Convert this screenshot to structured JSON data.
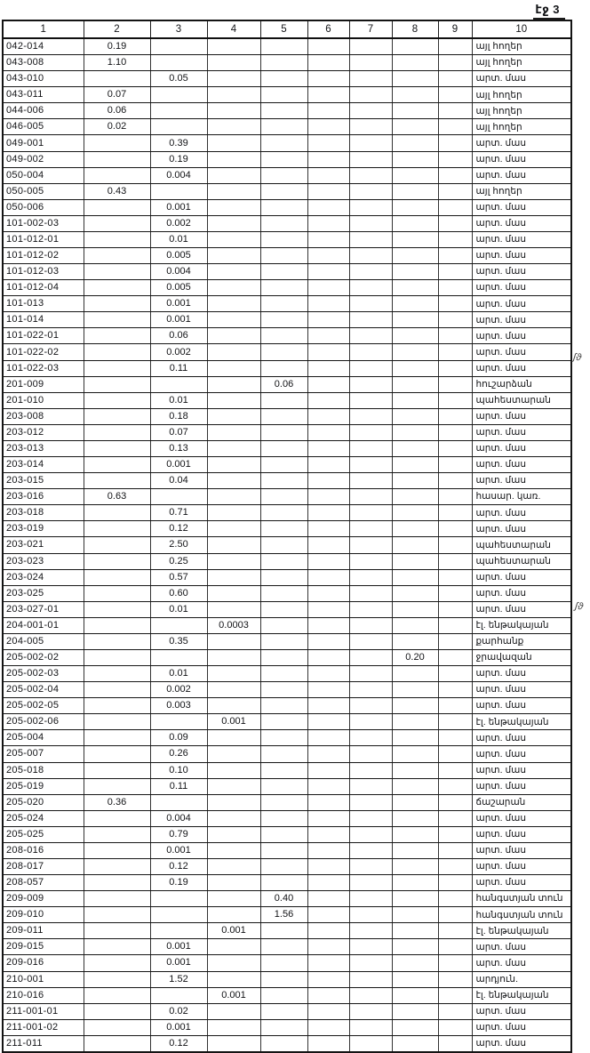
{
  "page": {
    "label": "էջ 3"
  },
  "table": {
    "headers": [
      "1",
      "2",
      "3",
      "4",
      "5",
      "6",
      "7",
      "8",
      "9",
      "10"
    ],
    "rows": [
      [
        "042-014",
        "0.19",
        "",
        "",
        "",
        "",
        "",
        "",
        "",
        "այլ հողեր"
      ],
      [
        "043-008",
        "1.10",
        "",
        "",
        "",
        "",
        "",
        "",
        "",
        "այլ հողեր"
      ],
      [
        "043-010",
        "",
        "0.05",
        "",
        "",
        "",
        "",
        "",
        "",
        "արտ. մաս"
      ],
      [
        "043-011",
        "0.07",
        "",
        "",
        "",
        "",
        "",
        "",
        "",
        "այլ հողեր"
      ],
      [
        "044-006",
        "0.06",
        "",
        "",
        "",
        "",
        "",
        "",
        "",
        "այլ հողեր"
      ],
      [
        "046-005",
        "0.02",
        "",
        "",
        "",
        "",
        "",
        "",
        "",
        "այլ հողեր"
      ],
      [
        "049-001",
        "",
        "0.39",
        "",
        "",
        "",
        "",
        "",
        "",
        "արտ. մաս"
      ],
      [
        "049-002",
        "",
        "0.19",
        "",
        "",
        "",
        "",
        "",
        "",
        "արտ. մաս"
      ],
      [
        "050-004",
        "",
        "0.004",
        "",
        "",
        "",
        "",
        "",
        "",
        "արտ. մաս"
      ],
      [
        "050-005",
        "0.43",
        "",
        "",
        "",
        "",
        "",
        "",
        "",
        "այլ հողեր"
      ],
      [
        "050-006",
        "",
        "0.001",
        "",
        "",
        "",
        "",
        "",
        "",
        "արտ. մաս"
      ],
      [
        "101-002-03",
        "",
        "0.002",
        "",
        "",
        "",
        "",
        "",
        "",
        "արտ. մաս"
      ],
      [
        "101-012-01",
        "",
        "0.01",
        "",
        "",
        "",
        "",
        "",
        "",
        "արտ. մաս"
      ],
      [
        "101-012-02",
        "",
        "0.005",
        "",
        "",
        "",
        "",
        "",
        "",
        "արտ. մաս"
      ],
      [
        "101-012-03",
        "",
        "0.004",
        "",
        "",
        "",
        "",
        "",
        "",
        "արտ. մաս"
      ],
      [
        "101-012-04",
        "",
        "0.005",
        "",
        "",
        "",
        "",
        "",
        "",
        "արտ. մաս"
      ],
      [
        "101-013",
        "",
        "0.001",
        "",
        "",
        "",
        "",
        "",
        "",
        "արտ. մաս"
      ],
      [
        "101-014",
        "",
        "0.001",
        "",
        "",
        "",
        "",
        "",
        "",
        "արտ. մաս"
      ],
      [
        "101-022-01",
        "",
        "0.06",
        "",
        "",
        "",
        "",
        "",
        "",
        "արտ. մաս"
      ],
      [
        "101-022-02",
        "",
        "0.002",
        "",
        "",
        "",
        "",
        "",
        "",
        "արտ. մաս"
      ],
      [
        "101-022-03",
        "",
        "0.11",
        "",
        "",
        "",
        "",
        "",
        "",
        "արտ. մաս"
      ],
      [
        "201-009",
        "",
        "",
        "",
        "0.06",
        "",
        "",
        "",
        "",
        "հուշարձան"
      ],
      [
        "201-010",
        "",
        "0.01",
        "",
        "",
        "",
        "",
        "",
        "",
        "պահեստարան"
      ],
      [
        "203-008",
        "",
        "0.18",
        "",
        "",
        "",
        "",
        "",
        "",
        "արտ. մաս"
      ],
      [
        "203-012",
        "",
        "0.07",
        "",
        "",
        "",
        "",
        "",
        "",
        "արտ. մաս"
      ],
      [
        "203-013",
        "",
        "0.13",
        "",
        "",
        "",
        "",
        "",
        "",
        "արտ. մաս"
      ],
      [
        "203-014",
        "",
        "0.001",
        "",
        "",
        "",
        "",
        "",
        "",
        "արտ. մաս"
      ],
      [
        "203-015",
        "",
        "0.04",
        "",
        "",
        "",
        "",
        "",
        "",
        "արտ. մաս"
      ],
      [
        "203-016",
        "0.63",
        "",
        "",
        "",
        "",
        "",
        "",
        "",
        "հասար. կառ."
      ],
      [
        "203-018",
        "",
        "0.71",
        "",
        "",
        "",
        "",
        "",
        "",
        "արտ. մաս"
      ],
      [
        "203-019",
        "",
        "0.12",
        "",
        "",
        "",
        "",
        "",
        "",
        "արտ. մաս"
      ],
      [
        "203-021",
        "",
        "2.50",
        "",
        "",
        "",
        "",
        "",
        "",
        "պահեստարան"
      ],
      [
        "203-023",
        "",
        "0.25",
        "",
        "",
        "",
        "",
        "",
        "",
        "պահեստարան"
      ],
      [
        "203-024",
        "",
        "0.57",
        "",
        "",
        "",
        "",
        "",
        "",
        "արտ. մաս"
      ],
      [
        "203-025",
        "",
        "0.60",
        "",
        "",
        "",
        "",
        "",
        "",
        "արտ. մաս"
      ],
      [
        "203-027-01",
        "",
        "0.01",
        "",
        "",
        "",
        "",
        "",
        "",
        "արտ. մաս"
      ],
      [
        "204-001-01",
        "",
        "",
        "0.0003",
        "",
        "",
        "",
        "",
        "",
        "էլ. ենթակայան"
      ],
      [
        "204-005",
        "",
        "0.35",
        "",
        "",
        "",
        "",
        "",
        "",
        "քարհանք"
      ],
      [
        "205-002-02",
        "",
        "",
        "",
        "",
        "",
        "",
        "0.20",
        "",
        "ջրավազան"
      ],
      [
        "205-002-03",
        "",
        "0.01",
        "",
        "",
        "",
        "",
        "",
        "",
        "արտ. մաս"
      ],
      [
        "205-002-04",
        "",
        "0.002",
        "",
        "",
        "",
        "",
        "",
        "",
        "արտ. մաս"
      ],
      [
        "205-002-05",
        "",
        "0.003",
        "",
        "",
        "",
        "",
        "",
        "",
        "արտ. մաս"
      ],
      [
        "205-002-06",
        "",
        "",
        "0.001",
        "",
        "",
        "",
        "",
        "",
        "էլ. ենթակայան"
      ],
      [
        "205-004",
        "",
        "0.09",
        "",
        "",
        "",
        "",
        "",
        "",
        "արտ. մաս"
      ],
      [
        "205-007",
        "",
        "0.26",
        "",
        "",
        "",
        "",
        "",
        "",
        "արտ. մաս"
      ],
      [
        "205-018",
        "",
        "0.10",
        "",
        "",
        "",
        "",
        "",
        "",
        "արտ. մաս"
      ],
      [
        "205-019",
        "",
        "0.11",
        "",
        "",
        "",
        "",
        "",
        "",
        "արտ. մաս"
      ],
      [
        "205-020",
        "0.36",
        "",
        "",
        "",
        "",
        "",
        "",
        "",
        "ճաշարան"
      ],
      [
        "205-024",
        "",
        "0.004",
        "",
        "",
        "",
        "",
        "",
        "",
        "արտ. մաս"
      ],
      [
        "205-025",
        "",
        "0.79",
        "",
        "",
        "",
        "",
        "",
        "",
        "արտ. մաս"
      ],
      [
        "208-016",
        "",
        "0.001",
        "",
        "",
        "",
        "",
        "",
        "",
        "արտ. մաս"
      ],
      [
        "208-017",
        "",
        "0.12",
        "",
        "",
        "",
        "",
        "",
        "",
        "արտ. մաս"
      ],
      [
        "208-057",
        "",
        "0.19",
        "",
        "",
        "",
        "",
        "",
        "",
        "արտ. մաս"
      ],
      [
        "209-009",
        "",
        "",
        "",
        "0.40",
        "",
        "",
        "",
        "",
        "հանգստյան տուն"
      ],
      [
        "209-010",
        "",
        "",
        "",
        "1.56",
        "",
        "",
        "",
        "",
        "հանգստյան տուն"
      ],
      [
        "209-011",
        "",
        "",
        "0.001",
        "",
        "",
        "",
        "",
        "",
        "էլ. ենթակայան"
      ],
      [
        "209-015",
        "",
        "0.001",
        "",
        "",
        "",
        "",
        "",
        "",
        "արտ. մաս"
      ],
      [
        "209-016",
        "",
        "0.001",
        "",
        "",
        "",
        "",
        "",
        "",
        "արտ. մաս"
      ],
      [
        "210-001",
        "",
        "1.52",
        "",
        "",
        "",
        "",
        "",
        "",
        "արդյուն."
      ],
      [
        "210-016",
        "",
        "",
        "0.001",
        "",
        "",
        "",
        "",
        "",
        "էլ. ենթակայան"
      ],
      [
        "211-001-01",
        "",
        "0.02",
        "",
        "",
        "",
        "",
        "",
        "",
        "արտ. մաս"
      ],
      [
        "211-001-02",
        "",
        "0.001",
        "",
        "",
        "",
        "",
        "",
        "",
        "արտ. մաս"
      ],
      [
        "211-011",
        "",
        "0.12",
        "",
        "",
        "",
        "",
        "",
        "",
        "արտ. մաս"
      ]
    ]
  },
  "margin_marks": [
    "ʃϑ",
    "ʃϑ"
  ]
}
